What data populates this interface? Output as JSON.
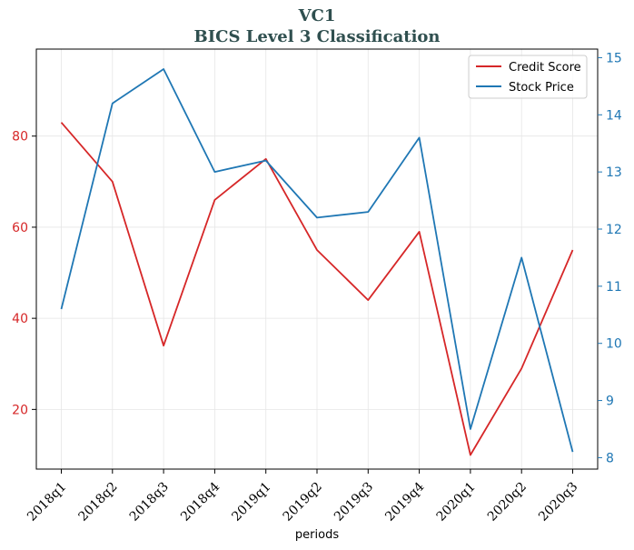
{
  "chart_data": {
    "type": "line",
    "title": "VC1",
    "subtitle": "BICS Level 3 Classification",
    "xlabel": "periods",
    "categories": [
      "2018q1",
      "2018q2",
      "2018q3",
      "2018q4",
      "2019q1",
      "2019q2",
      "2019q3",
      "2019q4",
      "2020q1",
      "2020q2",
      "2020q3"
    ],
    "series": [
      {
        "name": "Credit Score",
        "axis": "left",
        "color": "#d62728",
        "values": [
          83,
          70,
          34,
          66,
          75,
          55,
          44,
          59,
          10,
          29,
          55
        ]
      },
      {
        "name": "Stock Price",
        "axis": "right",
        "color": "#1f77b4",
        "values": [
          10.6,
          14.2,
          14.8,
          13.0,
          13.2,
          12.2,
          12.3,
          13.6,
          8.5,
          11.5,
          8.1
        ]
      }
    ],
    "y_left": {
      "ticks": [
        20,
        40,
        60,
        80
      ],
      "range": [
        6.9,
        99.1
      ],
      "color": "#d62728"
    },
    "y_right": {
      "ticks": [
        8,
        9,
        10,
        11,
        12,
        13,
        14,
        15
      ],
      "range": [
        7.8,
        15.15
      ],
      "color": "#1f77b4"
    },
    "grid": true,
    "legend_position": "top-right"
  }
}
